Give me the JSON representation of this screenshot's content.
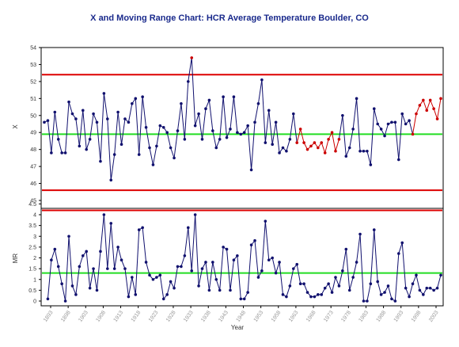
{
  "title": "X and Moving Range Chart: HCR Average Temperature Boulder, CO",
  "chart_data": [
    {
      "type": "line",
      "panel": "X",
      "ylabel": "X",
      "xlabel": "",
      "ylim": [
        45,
        54
      ],
      "yticks": [
        "45",
        "46",
        "47",
        "48",
        "49",
        "50",
        "51",
        "52",
        "53",
        "54"
      ],
      "center_line": 48.9,
      "ucl": 52.4,
      "lcl": 45.6,
      "colors": {
        "in_control": "#10106e",
        "out_of_control": "#cc0000",
        "limit": "#dd0000",
        "center": "#22dd22"
      },
      "x_start": 1897,
      "values": [
        49.6,
        49.7,
        47.8,
        50.2,
        48.6,
        47.8,
        47.8,
        50.8,
        50.1,
        49.8,
        48.2,
        50.3,
        48.0,
        48.6,
        50.1,
        49.6,
        47.3,
        51.3,
        49.8,
        46.2,
        47.7,
        50.2,
        48.3,
        49.8,
        49.6,
        50.7,
        51.0,
        47.7,
        51.1,
        49.3,
        48.1,
        47.1,
        48.2,
        49.4,
        49.3,
        49.0,
        48.1,
        47.5,
        49.1,
        50.7,
        48.6,
        52.0,
        53.4,
        49.4,
        50.1,
        48.6,
        50.4,
        50.9,
        49.1,
        48.1,
        48.6,
        51.1,
        48.7,
        49.2,
        51.1,
        49.0,
        48.9,
        49.0,
        49.4,
        46.8,
        49.6,
        50.7,
        52.1,
        48.4,
        50.3,
        48.3,
        49.6,
        47.8,
        48.1,
        47.9,
        48.6,
        50.1,
        48.4,
        49.2,
        48.4,
        48.0,
        48.2,
        48.4,
        48.1,
        48.4,
        47.8,
        48.6,
        49.0,
        47.9,
        48.6,
        50.0,
        47.6,
        48.1,
        49.2,
        51.0,
        47.9,
        47.9,
        47.9,
        47.1,
        50.4,
        49.5,
        49.2,
        48.8,
        49.5,
        49.6,
        49.6,
        47.4,
        50.1,
        49.5,
        49.7,
        48.9,
        50.1,
        50.6,
        50.9,
        50.3,
        50.9,
        50.4,
        49.8,
        51.0
      ],
      "out_of_control_points": [
        42,
        72,
        73,
        74,
        75,
        76,
        77,
        78,
        79,
        80,
        81,
        82,
        83,
        84,
        105,
        106,
        107,
        108,
        109,
        110,
        111,
        112,
        113
      ]
    },
    {
      "type": "line",
      "panel": "MR",
      "ylabel": "MR",
      "xlabel": "Year",
      "ylim": [
        0,
        4.5
      ],
      "yticks": [
        "0",
        "0.5",
        "1",
        "1.5",
        "2",
        "2.5",
        "3",
        "3.5",
        "4",
        "4.5"
      ],
      "center_line": 1.3,
      "ucl": 4.2,
      "colors": {
        "line": "#10106e",
        "limit": "#dd0000",
        "center": "#22dd22"
      },
      "x_start": 1897,
      "values": [
        null,
        0.1,
        1.9,
        2.4,
        1.6,
        0.8,
        0.0,
        3.0,
        0.7,
        0.3,
        1.6,
        2.1,
        2.3,
        0.6,
        1.5,
        0.5,
        2.3,
        4.0,
        1.5,
        3.6,
        1.5,
        2.5,
        1.9,
        1.5,
        0.2,
        1.1,
        0.3,
        3.3,
        3.4,
        1.8,
        1.2,
        1.0,
        1.1,
        1.2,
        0.1,
        0.3,
        0.9,
        0.6,
        1.6,
        1.6,
        2.1,
        3.4,
        1.4,
        4.0,
        0.7,
        1.5,
        1.8,
        0.5,
        1.8,
        1.0,
        0.5,
        2.5,
        2.4,
        0.5,
        1.9,
        2.1,
        0.1,
        0.1,
        0.4,
        2.6,
        2.8,
        1.1,
        1.4,
        3.7,
        1.9,
        2.0,
        1.3,
        1.8,
        0.3,
        0.2,
        0.7,
        1.5,
        1.7,
        0.8,
        0.8,
        0.4,
        0.2,
        0.2,
        0.3,
        0.3,
        0.6,
        0.8,
        0.4,
        1.1,
        0.7,
        1.4,
        2.4,
        0.5,
        1.1,
        1.8,
        3.1,
        0.0,
        0.0,
        0.8,
        3.3,
        0.9,
        0.3,
        0.4,
        0.7,
        0.1,
        0.0,
        2.2,
        2.7,
        0.6,
        0.2,
        0.8,
        1.2,
        0.5,
        0.3,
        0.6,
        0.6,
        0.5,
        0.6,
        1.2
      ],
      "x_ticks": [
        "1893",
        "1898",
        "1903",
        "1908",
        "1913",
        "1918",
        "1923",
        "1928",
        "1933",
        "1938",
        "1943",
        "1948",
        "1953",
        "1958",
        "1963",
        "1968",
        "1973",
        "1978",
        "1983",
        "1988",
        "1993",
        "1998",
        "2003"
      ]
    }
  ]
}
